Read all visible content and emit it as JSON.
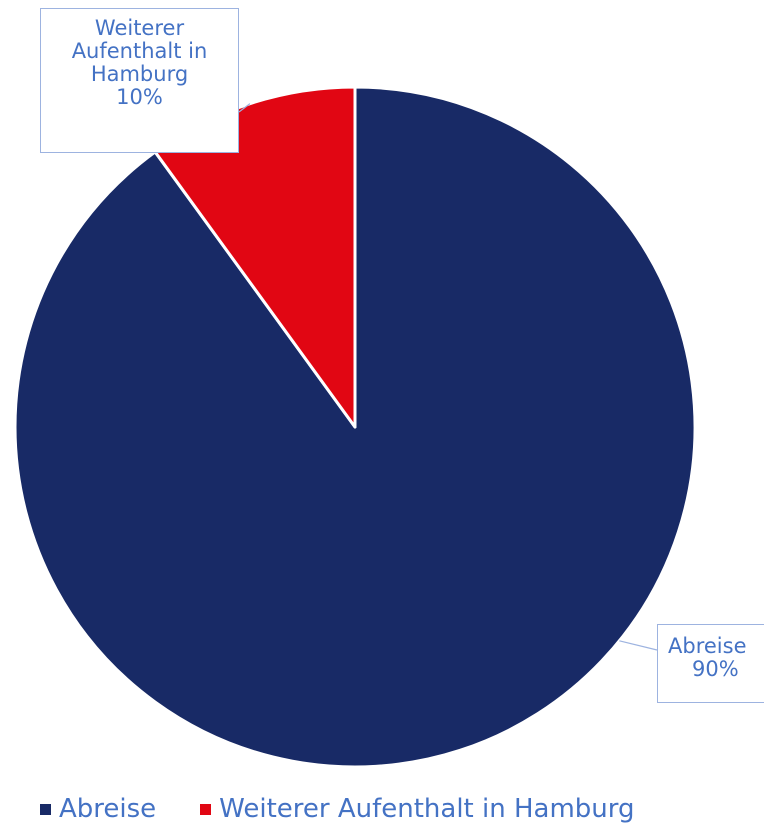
{
  "chart_data": {
    "type": "pie",
    "categories": [
      "Abreise",
      "Weiterer Aufenthalt in Hamburg"
    ],
    "values": [
      90,
      10
    ],
    "unit": "%",
    "colors": [
      "#182a66",
      "#e10613"
    ],
    "data_labels": [
      {
        "category": "Abreise",
        "value": "90%"
      },
      {
        "category": "Weiterer Aufenthalt in Hamburg",
        "value": "10%"
      }
    ],
    "legend": {
      "position": "bottom",
      "entries": [
        "Abreise",
        "Weiterer Aufenthalt in Hamburg"
      ]
    }
  }
}
